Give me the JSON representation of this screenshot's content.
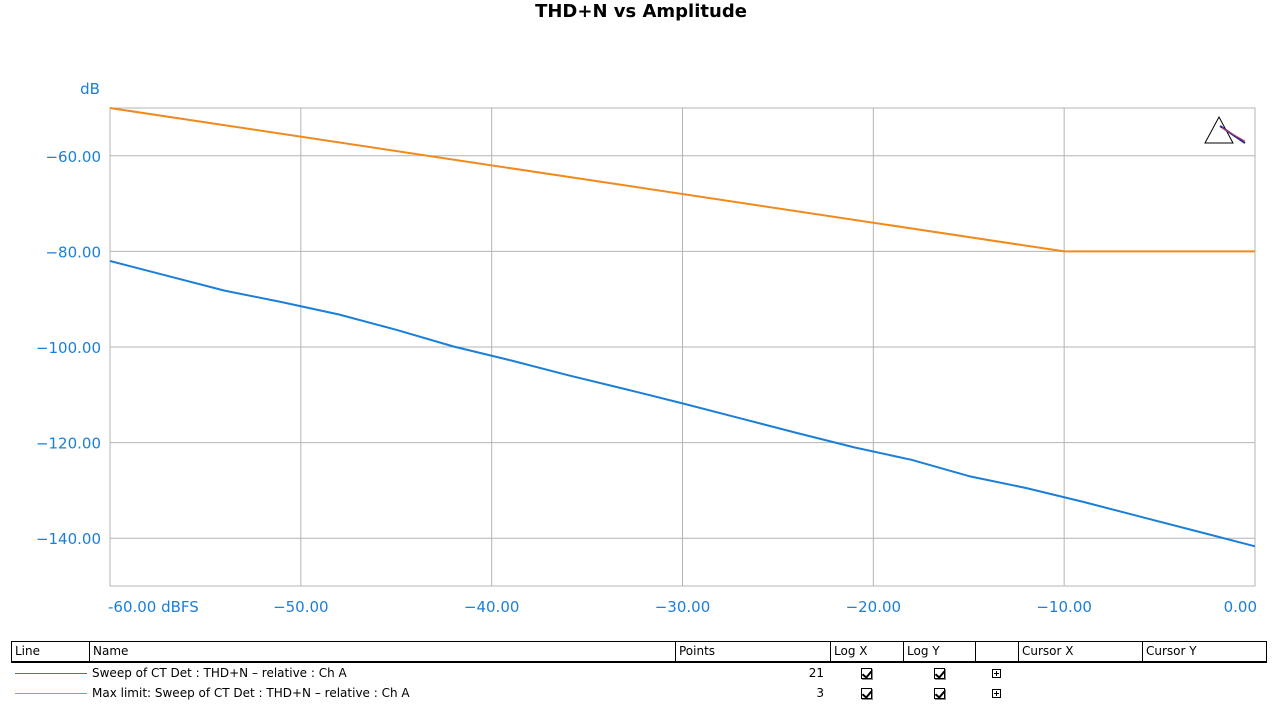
{
  "chart_data": {
    "type": "line",
    "title": "THD+N vs Amplitude",
    "ylabel": "dB",
    "xlabel": "",
    "xlim": [
      -60,
      0
    ],
    "ylim": [
      -150,
      -50
    ],
    "grid": true,
    "xticks": [
      {
        "value": -60,
        "label": "-60.00 dBFS"
      },
      {
        "value": -50,
        "label": "−50.00"
      },
      {
        "value": -40,
        "label": "−40.00"
      },
      {
        "value": -30,
        "label": "−30.00"
      },
      {
        "value": -20,
        "label": "−20.00"
      },
      {
        "value": -10,
        "label": "−10.00"
      },
      {
        "value": 0,
        "label": "0.00"
      }
    ],
    "yticks": [
      {
        "value": -60,
        "label": "−60.00"
      },
      {
        "value": -80,
        "label": "−80.00"
      },
      {
        "value": -100,
        "label": "−100.00"
      },
      {
        "value": -120,
        "label": "−120.00"
      },
      {
        "value": -140,
        "label": "−140.00"
      }
    ],
    "series": [
      {
        "name": "Sweep of CT Det : THD+N – relative : Ch A",
        "color": "#1a7fd8",
        "x": [
          -60,
          -57,
          -54,
          -51,
          -48,
          -45,
          -42,
          -39,
          -36,
          -33,
          -30,
          -27,
          -24,
          -21,
          -18,
          -15,
          -12,
          -9,
          -6,
          -3,
          0
        ],
        "y": [
          -82.0,
          -85.1,
          -88.2,
          -90.6,
          -93.2,
          -96.4,
          -99.9,
          -102.8,
          -105.9,
          -108.8,
          -111.8,
          -114.9,
          -118.0,
          -121.0,
          -123.6,
          -127.0,
          -129.5,
          -132.4,
          -135.5,
          -138.6,
          -141.7
        ]
      },
      {
        "name": "Max limit: Sweep of CT Det : THD+N – relative : Ch A",
        "color": "#f08a1c",
        "x": [
          -60,
          -10,
          0
        ],
        "y": [
          -50,
          -80,
          -80
        ]
      }
    ]
  },
  "legend_table": {
    "headers": {
      "line": "Line",
      "name": "Name",
      "points": "Points",
      "logx": "Log X",
      "logy": "Log Y",
      "expand": "",
      "cursorx": "Cursor X",
      "cursory": "Cursor Y"
    },
    "rows": [
      {
        "name": "Sweep of CT Det : THD+N – relative : Ch A",
        "points": "21",
        "color": "#1a7fd8",
        "logx": true,
        "logy": true,
        "cursor_enabled": true
      },
      {
        "name": "Max limit: Sweep of CT Det : THD+N – relative : Ch A",
        "points": "3",
        "color": "#f08a1c",
        "logx": true,
        "logy": true,
        "cursor_enabled": false
      }
    ]
  },
  "colors": {
    "axis_text": "#1a7fd8",
    "grid": "#b4b4b4"
  },
  "icons": {
    "corner_marker": "triangle-pointer-icon"
  }
}
